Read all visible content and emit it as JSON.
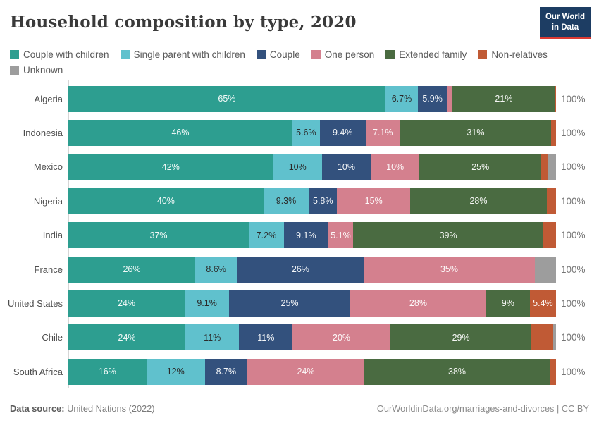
{
  "header": {
    "title": "Household composition by type, 2020",
    "logo": {
      "line1": "Our World",
      "line2": "in Data"
    }
  },
  "colors": {
    "couple_with_children": "#2d9e90",
    "single_parent_with_children": "#60c1cd",
    "couple": "#33517d",
    "one_person": "#d4808e",
    "extended_family": "#4a6b41",
    "non_relatives": "#c05a35",
    "unknown": "#9d9d9d",
    "logo_bg": "#1d3d63",
    "logo_accent": "#dc3b33",
    "axis_line": "#d6d6d6"
  },
  "legend": {
    "items": [
      {
        "key": "couple_with_children",
        "label": "Couple with children"
      },
      {
        "key": "single_parent_with_children",
        "label": "Single parent with children"
      },
      {
        "key": "couple",
        "label": "Couple"
      },
      {
        "key": "one_person",
        "label": "One person"
      },
      {
        "key": "extended_family",
        "label": "Extended family"
      },
      {
        "key": "non_relatives",
        "label": "Non-relatives"
      },
      {
        "key": "unknown",
        "label": "Unknown"
      }
    ]
  },
  "chart_data": {
    "type": "bar",
    "stacked": true,
    "orientation": "horizontal",
    "unit": "%",
    "xlim": [
      0,
      100
    ],
    "title": "Household composition by type, 2020",
    "label_threshold_pct": 5,
    "total_label": "100%",
    "categories": [
      "Algeria",
      "Indonesia",
      "Mexico",
      "Nigeria",
      "India",
      "France",
      "United States",
      "Chile",
      "South Africa"
    ],
    "series": [
      {
        "key": "couple_with_children",
        "name": "Couple with children",
        "values": [
          65,
          46,
          42,
          40,
          37,
          26,
          24,
          24,
          16
        ]
      },
      {
        "key": "single_parent_with_children",
        "name": "Single parent with children",
        "values": [
          6.7,
          5.6,
          10,
          9.3,
          7.2,
          8.6,
          9.1,
          11,
          12
        ]
      },
      {
        "key": "couple",
        "name": "Couple",
        "values": [
          5.9,
          9.4,
          10,
          5.8,
          9.1,
          26,
          25,
          11,
          8.7
        ]
      },
      {
        "key": "one_person",
        "name": "One person",
        "values": [
          1.2,
          7.1,
          10,
          15,
          5.1,
          35,
          28,
          20,
          24
        ]
      },
      {
        "key": "extended_family",
        "name": "Extended family",
        "values": [
          21,
          31,
          25,
          28,
          39,
          0,
          9,
          29,
          38
        ]
      },
      {
        "key": "non_relatives",
        "name": "Non-relatives",
        "values": [
          0.2,
          1.0,
          1.3,
          1.9,
          2.6,
          0,
          5.4,
          4.4,
          1.3
        ]
      },
      {
        "key": "unknown",
        "name": "Unknown",
        "values": [
          0,
          0,
          1.7,
          0,
          0,
          4.4,
          0,
          0.6,
          0
        ]
      }
    ]
  },
  "footer": {
    "source_label": "Data source:",
    "source_text": " United Nations (2022)",
    "link_text": "OurWorldinData.org/marriages-and-divorces | CC BY"
  }
}
